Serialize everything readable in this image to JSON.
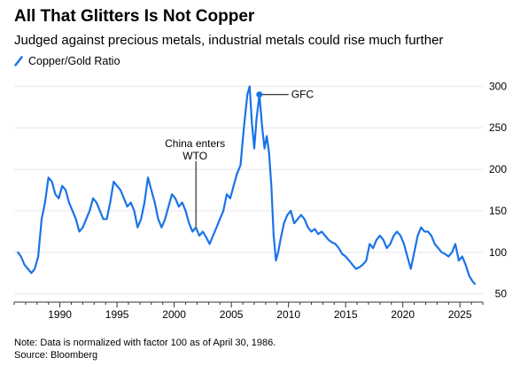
{
  "header": {
    "title": "All That Glitters Is Not Copper",
    "subtitle": "Judged against precious metals, industrial metals could rise much further"
  },
  "footer": {
    "note": "Note: Data is normalized with factor 100 as of April 30, 1986.",
    "source": "Source: Bloomberg"
  },
  "colors": {
    "line": "#1a73e8",
    "grid": "#e6e6e6",
    "axis": "#333333"
  },
  "chart_data": {
    "type": "line",
    "title": "All That Glitters Is Not Copper",
    "subtitle": "Judged against precious metals, industrial metals could rise much further",
    "legend": [
      "Copper/Gold Ratio"
    ],
    "legend_position": "top-left",
    "xlim": [
      1986.0,
      2027.0
    ],
    "ylim": [
      40,
      310
    ],
    "x_ticks": [
      1990,
      1995,
      2000,
      2005,
      2010,
      2015,
      2020,
      2025
    ],
    "y_ticks": [
      50,
      100,
      150,
      200,
      250,
      300
    ],
    "y_axis_side": "right",
    "grid": "horizontal",
    "annotations": [
      {
        "text": "China enters WTO",
        "lines": [
          "China enters",
          "WTO"
        ],
        "x": 2001.9,
        "y": 130,
        "style": "vertical-line"
      },
      {
        "text": "GFC",
        "x": 2007.45,
        "y": 290,
        "style": "dot-leader"
      }
    ],
    "series": [
      {
        "name": "Copper/Gold Ratio",
        "x": [
          1986.33,
          1986.6,
          1986.9,
          1987.2,
          1987.5,
          1987.8,
          1988.1,
          1988.4,
          1988.7,
          1989.0,
          1989.3,
          1989.6,
          1989.9,
          1990.2,
          1990.5,
          1990.8,
          1991.1,
          1991.4,
          1991.7,
          1992.0,
          1992.3,
          1992.6,
          1992.9,
          1993.2,
          1993.5,
          1993.8,
          1994.1,
          1994.4,
          1994.7,
          1995.0,
          1995.3,
          1995.6,
          1995.9,
          1996.2,
          1996.5,
          1996.8,
          1997.1,
          1997.4,
          1997.7,
          1998.0,
          1998.3,
          1998.6,
          1998.9,
          1999.2,
          1999.5,
          1999.8,
          2000.1,
          2000.4,
          2000.7,
          2001.0,
          2001.3,
          2001.6,
          2001.9,
          2002.2,
          2002.5,
          2002.8,
          2003.1,
          2003.4,
          2003.7,
          2004.0,
          2004.3,
          2004.6,
          2004.9,
          2005.2,
          2005.5,
          2005.8,
          2006.1,
          2006.4,
          2006.6,
          2006.8,
          2007.0,
          2007.2,
          2007.45,
          2007.7,
          2007.9,
          2008.1,
          2008.3,
          2008.5,
          2008.7,
          2008.9,
          2009.1,
          2009.3,
          2009.6,
          2009.9,
          2010.2,
          2010.5,
          2010.8,
          2011.1,
          2011.4,
          2011.7,
          2012.0,
          2012.3,
          2012.6,
          2012.9,
          2013.2,
          2013.5,
          2013.8,
          2014.1,
          2014.4,
          2014.7,
          2015.0,
          2015.3,
          2015.6,
          2015.9,
          2016.2,
          2016.5,
          2016.8,
          2017.1,
          2017.4,
          2017.7,
          2018.0,
          2018.3,
          2018.6,
          2018.9,
          2019.2,
          2019.5,
          2019.8,
          2020.1,
          2020.4,
          2020.7,
          2021.0,
          2021.3,
          2021.6,
          2021.9,
          2022.2,
          2022.5,
          2022.8,
          2023.1,
          2023.4,
          2023.7,
          2024.0,
          2024.3,
          2024.6,
          2024.9,
          2025.2,
          2025.5,
          2025.8,
          2026.1,
          2026.3
        ],
        "values": [
          100,
          95,
          85,
          80,
          75,
          80,
          95,
          140,
          160,
          190,
          185,
          170,
          165,
          180,
          175,
          160,
          150,
          140,
          125,
          130,
          140,
          150,
          165,
          160,
          150,
          140,
          140,
          160,
          185,
          180,
          175,
          165,
          155,
          160,
          150,
          130,
          140,
          160,
          190,
          175,
          160,
          140,
          130,
          140,
          155,
          170,
          165,
          155,
          160,
          150,
          135,
          125,
          130,
          120,
          125,
          118,
          110,
          120,
          130,
          140,
          150,
          170,
          165,
          180,
          195,
          205,
          250,
          290,
          300,
          255,
          225,
          260,
          290,
          250,
          225,
          240,
          220,
          180,
          120,
          90,
          100,
          115,
          135,
          145,
          150,
          135,
          140,
          145,
          140,
          130,
          125,
          128,
          122,
          125,
          120,
          115,
          112,
          110,
          105,
          98,
          95,
          90,
          85,
          80,
          82,
          85,
          90,
          110,
          105,
          115,
          120,
          115,
          105,
          110,
          120,
          125,
          120,
          110,
          95,
          80,
          100,
          120,
          130,
          125,
          125,
          120,
          110,
          105,
          100,
          98,
          95,
          100,
          110,
          90,
          95,
          85,
          72,
          65,
          62
        ]
      }
    ]
  }
}
